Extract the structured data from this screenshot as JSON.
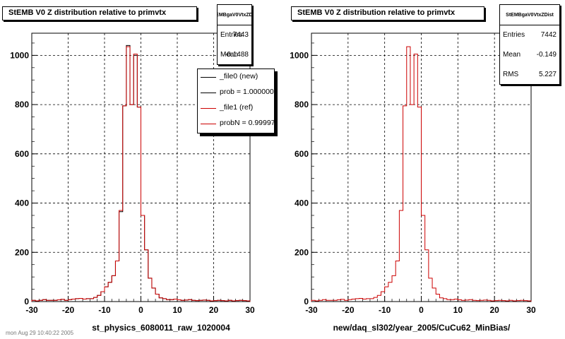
{
  "panels": [
    {
      "title": "StEMB V0 Z distribution relative to primvtx",
      "stats": {
        "name": "StEMBgaV0VtxZDist",
        "rows": [
          {
            "label": "Entries",
            "value": "7443"
          },
          {
            "label": "Mean",
            "value": "-0.1488"
          }
        ]
      },
      "legend": [
        {
          "label": "_file0 (new)",
          "color": "#000000"
        },
        {
          "label": "prob = 1.000000",
          "color": "#000000"
        },
        {
          "label": "_file1 (ref)",
          "color": "#cc0000"
        },
        {
          "label": "probN = 0.999975",
          "color": "#cc0000"
        }
      ],
      "xtitle": "st_physics_6080011_raw_1020004"
    },
    {
      "title": "StEMB V0 Z distribution relative to primvtx",
      "stats": {
        "name": "StEMBgaV0VtxZDist",
        "rows": [
          {
            "label": "Entries",
            "value": "7442"
          },
          {
            "label": "Mean",
            "value": "-0.149"
          },
          {
            "label": "RMS",
            "value": "5.227"
          }
        ]
      },
      "legend": [],
      "xtitle": "new/daq_sl302/year_2005/CuCu62_MinBias/"
    }
  ],
  "footer": "mon Aug 29 10:40:22 2005",
  "chart_data": [
    {
      "type": "histogram",
      "title": "StEMB V0 Z distribution relative to primvtx",
      "xlabel": "st_physics_6080011_raw_1020004",
      "ylabel": "",
      "xlim": [
        -30,
        30
      ],
      "ylim": [
        0,
        1090
      ],
      "xticks": [
        -30,
        -20,
        -10,
        0,
        10,
        20,
        30
      ],
      "yticks": [
        0,
        200,
        400,
        600,
        800,
        1000
      ],
      "grid": true,
      "bin_width": 1,
      "series": [
        {
          "name": "_file0 (new)",
          "color": "#000000",
          "values": [
            5,
            3,
            5,
            8,
            5,
            5,
            5,
            7,
            9,
            5,
            8,
            10,
            12,
            13,
            10,
            12,
            12,
            17,
            25,
            40,
            60,
            78,
            105,
            165,
            365,
            795,
            1040,
            800,
            1000,
            790,
            350,
            210,
            95,
            55,
            30,
            15,
            12,
            8,
            8,
            10,
            7,
            5,
            6,
            8,
            5,
            4,
            5,
            6,
            5,
            3,
            4,
            5,
            4,
            3,
            5,
            3,
            4,
            5,
            4,
            3
          ]
        },
        {
          "name": "_file1 (ref)",
          "color": "#cc0000",
          "values": [
            5,
            3,
            5,
            8,
            5,
            5,
            5,
            7,
            9,
            5,
            8,
            10,
            12,
            13,
            10,
            12,
            12,
            17,
            25,
            40,
            60,
            78,
            105,
            165,
            370,
            795,
            1035,
            800,
            1005,
            790,
            350,
            210,
            95,
            55,
            30,
            15,
            12,
            8,
            8,
            10,
            7,
            5,
            6,
            8,
            5,
            4,
            5,
            6,
            5,
            3,
            4,
            5,
            4,
            3,
            5,
            3,
            4,
            5,
            4,
            3
          ]
        }
      ]
    },
    {
      "type": "histogram",
      "title": "StEMB V0 Z distribution relative to primvtx",
      "xlabel": "new/daq_sl302/year_2005/CuCu62_MinBias/",
      "ylabel": "",
      "xlim": [
        -30,
        30
      ],
      "ylim": [
        0,
        1090
      ],
      "xticks": [
        -30,
        -20,
        -10,
        0,
        10,
        20,
        30
      ],
      "yticks": [
        0,
        200,
        400,
        600,
        800,
        1000
      ],
      "grid": true,
      "bin_width": 1,
      "series": [
        {
          "name": "",
          "color": "#cc0000",
          "values": [
            5,
            3,
            5,
            8,
            5,
            5,
            5,
            7,
            9,
            5,
            8,
            10,
            12,
            13,
            10,
            12,
            12,
            17,
            25,
            40,
            60,
            78,
            105,
            165,
            370,
            795,
            1035,
            800,
            1005,
            790,
            350,
            210,
            95,
            55,
            30,
            15,
            12,
            8,
            8,
            10,
            7,
            5,
            6,
            8,
            5,
            4,
            5,
            6,
            5,
            3,
            4,
            5,
            4,
            3,
            5,
            3,
            4,
            5,
            4,
            3
          ]
        }
      ]
    }
  ]
}
